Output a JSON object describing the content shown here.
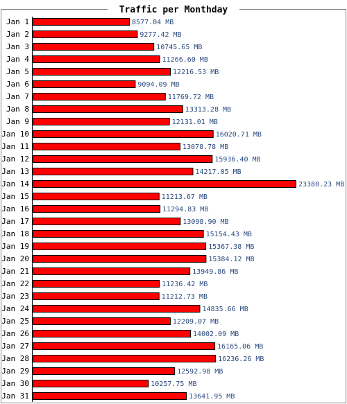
{
  "chart_data": {
    "type": "bar",
    "orientation": "horizontal",
    "title": "Traffic per Monthday",
    "unit": "MB",
    "bar_color": "#ff0000",
    "value_label_color": "#2a4a7f",
    "categories": [
      "Jan 1",
      "Jan 2",
      "Jan 3",
      "Jan 4",
      "Jan 5",
      "Jan 6",
      "Jan 7",
      "Jan 8",
      "Jan 9",
      "Jan 10",
      "Jan 11",
      "Jan 12",
      "Jan 13",
      "Jan 14",
      "Jan 15",
      "Jan 16",
      "Jan 17",
      "Jan 18",
      "Jan 19",
      "Jan 20",
      "Jan 21",
      "Jan 22",
      "Jan 23",
      "Jan 24",
      "Jan 25",
      "Jan 26",
      "Jan 27",
      "Jan 28",
      "Jan 29",
      "Jan 30",
      "Jan 31"
    ],
    "values": [
      8577.04,
      9277.42,
      10745.65,
      11266.6,
      12216.53,
      9094.09,
      11769.72,
      13313.28,
      12131.01,
      16020.71,
      13078.78,
      15936.4,
      14217.05,
      23380.23,
      11213.67,
      11294.83,
      13098.9,
      15154.43,
      15367.38,
      15384.12,
      13949.86,
      11236.42,
      11212.73,
      14835.66,
      12209.07,
      14002.09,
      16165.06,
      16236.26,
      12592.98,
      10257.75,
      13641.95
    ],
    "value_labels": [
      "8577.04 MB",
      "9277.42 MB",
      "10745.65 MB",
      "11266.60 MB",
      "12216.53 MB",
      "9094.09 MB",
      "11769.72 MB",
      "13313.28 MB",
      "12131.01 MB",
      "16020.71 MB",
      "13078.78 MB",
      "15936.40 MB",
      "14217.05 MB",
      "23380.23 MB",
      "11213.67 MB",
      "11294.83 MB",
      "13098.90 MB",
      "15154.43 MB",
      "15367.38 MB",
      "15384.12 MB",
      "13949.86 MB",
      "11236.42 MB",
      "11212.73 MB",
      "14835.66 MB",
      "12209.07 MB",
      "14002.09 MB",
      "16165.06 MB",
      "16236.26 MB",
      "12592.98 MB",
      "10257.75 MB",
      "13641.95 MB"
    ],
    "grid": false,
    "legend": "none"
  }
}
